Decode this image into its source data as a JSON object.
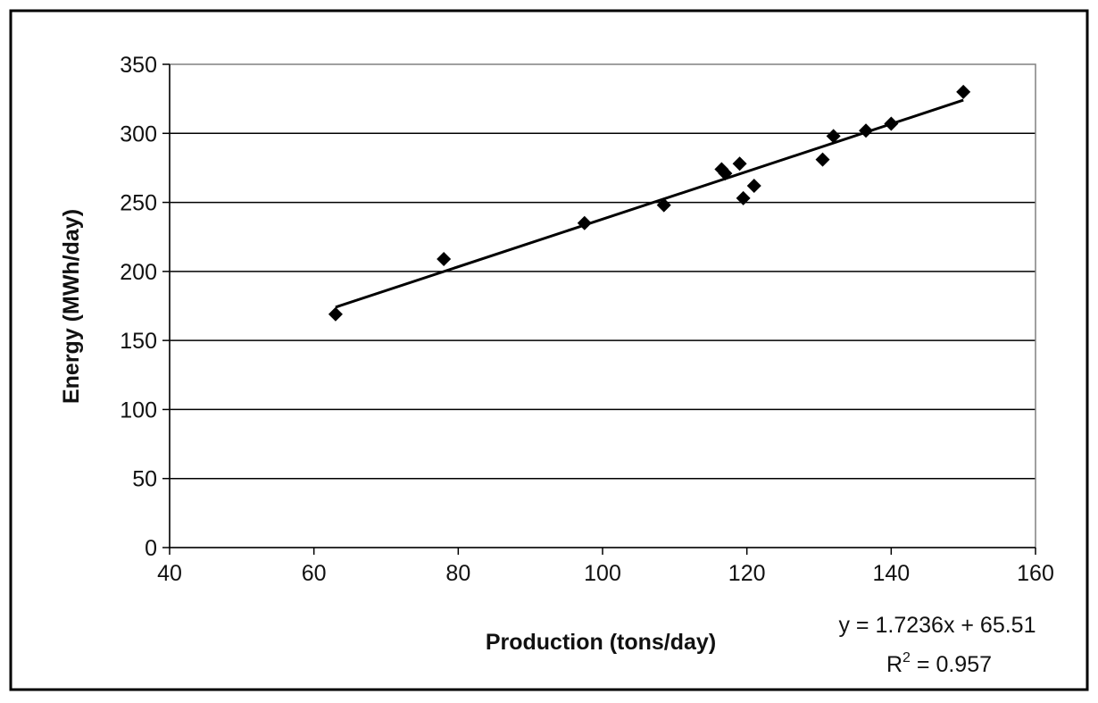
{
  "chart_data": {
    "type": "scatter",
    "title": "",
    "xlabel": "Production (tons/day)",
    "ylabel": "Energy (MWh/day)",
    "xlim": [
      40,
      160
    ],
    "ylim": [
      0,
      350
    ],
    "x_ticks": [
      40,
      60,
      80,
      100,
      120,
      140,
      160
    ],
    "y_ticks": [
      0,
      50,
      100,
      150,
      200,
      250,
      300,
      350
    ],
    "grid": "horizontal major gridlines",
    "legend": "none",
    "marker": "diamond",
    "series": [
      {
        "points": [
          {
            "x": 63,
            "y": 169
          },
          {
            "x": 78,
            "y": 209
          },
          {
            "x": 97.5,
            "y": 235
          },
          {
            "x": 108.5,
            "y": 248
          },
          {
            "x": 116.5,
            "y": 274
          },
          {
            "x": 117,
            "y": 271
          },
          {
            "x": 119,
            "y": 278
          },
          {
            "x": 119.5,
            "y": 253
          },
          {
            "x": 121,
            "y": 262
          },
          {
            "x": 130.5,
            "y": 281
          },
          {
            "x": 132,
            "y": 298
          },
          {
            "x": 136.5,
            "y": 302
          },
          {
            "x": 140,
            "y": 307
          },
          {
            "x": 150,
            "y": 330
          }
        ]
      }
    ],
    "trendline": {
      "type": "linear",
      "slope": 1.7236,
      "intercept": 65.51,
      "x_range": [
        63,
        150
      ],
      "equation_label": "y = 1.7236x + 65.51",
      "r2_prefix": "R",
      "r2_exponent": "2",
      "r2_suffix": " = 0.957"
    },
    "colors": {
      "marker": "#000000",
      "trendline": "#000000",
      "grid": "#000000",
      "plot_border": "#808080",
      "frame": "#000000"
    }
  }
}
